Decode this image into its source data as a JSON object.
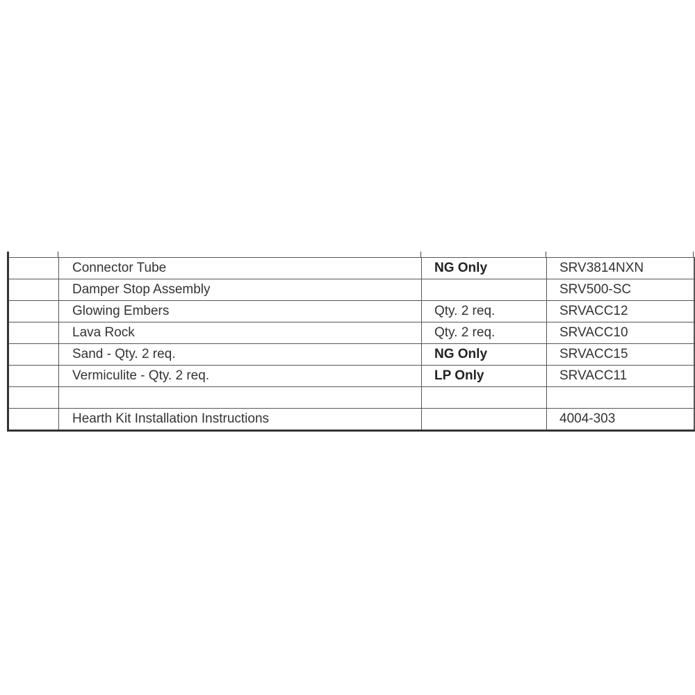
{
  "parts_table": {
    "rows": [
      {
        "description": "Connector Tube",
        "note": "NG Only",
        "note_bold": true,
        "part_number": "SRV3814NXN"
      },
      {
        "description": "Damper Stop Assembly",
        "note": "",
        "note_bold": false,
        "part_number": "SRV500-SC"
      },
      {
        "description": "Glowing Embers",
        "note": "Qty. 2 req.",
        "note_bold": false,
        "part_number": "SRVACC12"
      },
      {
        "description": "Lava Rock",
        "note": "Qty. 2 req.",
        "note_bold": false,
        "part_number": "SRVACC10"
      },
      {
        "description": "Sand - Qty. 2 req.",
        "note": "NG Only",
        "note_bold": true,
        "part_number": "SRVACC15"
      },
      {
        "description": "Vermiculite - Qty. 2 req.",
        "note": "LP Only",
        "note_bold": true,
        "part_number": "SRVACC11"
      },
      {
        "description": "",
        "note": "",
        "note_bold": false,
        "part_number": ""
      },
      {
        "description": "Hearth Kit Installation Instructions",
        "note": "",
        "note_bold": false,
        "part_number": "4004-303"
      }
    ]
  }
}
